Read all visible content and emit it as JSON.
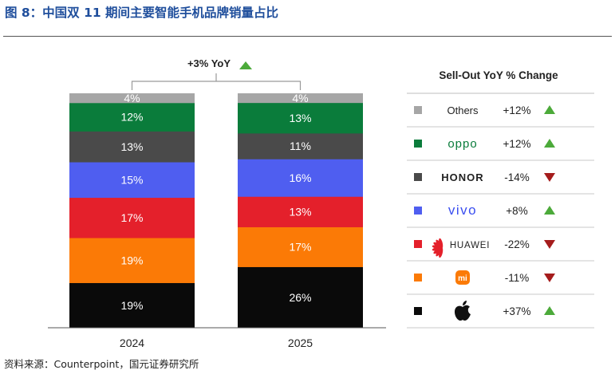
{
  "figure": {
    "title": "图 8：中国双 11 期间主要智能手机品牌销量占比",
    "source": "资料来源：Counterpoint，国元证券研究所"
  },
  "colors": {
    "Others": "#a6a6a6",
    "OPPO": "#0a7c3b",
    "HONOR": "#4a4a4a",
    "vivo": "#4f5ef0",
    "HUAWEI": "#e4202b",
    "Xiaomi": "#fb7a06",
    "Apple": "#0a0a0a",
    "up_arrow": "#4caa3a",
    "down_arrow": "#a51c1c"
  },
  "chart_data": {
    "type": "bar",
    "stacked": true,
    "unit": "%",
    "categories": [
      "2024",
      "2025"
    ],
    "series": [
      {
        "name": "Apple",
        "legend_icon": "apple-logo",
        "values": [
          19,
          26
        ]
      },
      {
        "name": "Xiaomi",
        "legend_icon": "xiaomi-logo",
        "values": [
          19,
          17
        ]
      },
      {
        "name": "HUAWEI",
        "legend_icon": "huawei-logo",
        "values": [
          17,
          13
        ]
      },
      {
        "name": "vivo",
        "legend_icon": "vivo-logo",
        "values": [
          15,
          16
        ]
      },
      {
        "name": "HONOR",
        "legend_icon": "honor-logo",
        "values": [
          13,
          11
        ]
      },
      {
        "name": "OPPO",
        "legend_icon": "oppo-logo",
        "values": [
          12,
          13
        ]
      },
      {
        "name": "Others",
        "legend_icon": "others-label",
        "values": [
          4,
          4
        ]
      }
    ],
    "data_labels": [
      [
        "19%",
        "19%",
        "17%",
        "15%",
        "13%",
        "12%",
        "4%"
      ],
      [
        "26%",
        "17%",
        "13%",
        "16%",
        "11%",
        "13%",
        "4%"
      ]
    ],
    "annotation": "+3% YoY",
    "legend_title": "Sell-Out YoY % Change",
    "legend_placement": "right",
    "legend": [
      {
        "label": "Others",
        "change": "+12%",
        "direction": "up"
      },
      {
        "label": "oppo",
        "change": "+12%",
        "direction": "up"
      },
      {
        "label": "HONOR",
        "change": "-14%",
        "direction": "down"
      },
      {
        "label": "vivo",
        "change": "+8%",
        "direction": "up"
      },
      {
        "label": "HUAWEI",
        "change": "-22%",
        "direction": "down"
      },
      {
        "label": "mi",
        "change": "-11%",
        "direction": "down"
      },
      {
        "label": "",
        "change": "+37%",
        "direction": "up"
      }
    ],
    "grid": false
  }
}
